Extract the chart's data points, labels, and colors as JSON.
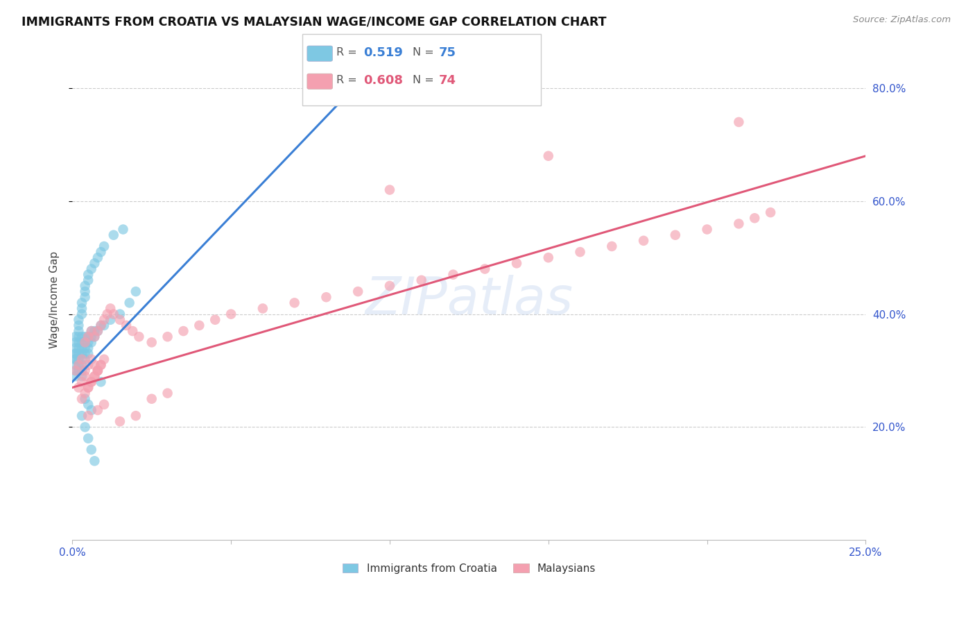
{
  "title": "IMMIGRANTS FROM CROATIA VS MALAYSIAN WAGE/INCOME GAP CORRELATION CHART",
  "source_text": "Source: ZipAtlas.com",
  "ylabel": "Wage/Income Gap",
  "xmin": 0.0,
  "xmax": 0.25,
  "ymin": 0.0,
  "ymax": 0.85,
  "ytick_labels": [
    "20.0%",
    "40.0%",
    "60.0%",
    "80.0%"
  ],
  "ytick_values": [
    0.2,
    0.4,
    0.6,
    0.8
  ],
  "croatia_color": "#7ec8e3",
  "malaysian_color": "#f4a0b0",
  "croatia_line_color": "#3a7fd5",
  "malaysian_line_color": "#e05878",
  "watermark_text": "ZIPatlas",
  "croatia_scatter_x": [
    0.001,
    0.001,
    0.001,
    0.001,
    0.001,
    0.001,
    0.001,
    0.001,
    0.001,
    0.001,
    0.002,
    0.002,
    0.002,
    0.002,
    0.002,
    0.002,
    0.002,
    0.002,
    0.002,
    0.002,
    0.003,
    0.003,
    0.003,
    0.003,
    0.003,
    0.003,
    0.003,
    0.003,
    0.003,
    0.003,
    0.004,
    0.004,
    0.004,
    0.004,
    0.004,
    0.004,
    0.004,
    0.004,
    0.005,
    0.005,
    0.005,
    0.005,
    0.005,
    0.005,
    0.006,
    0.006,
    0.006,
    0.006,
    0.007,
    0.007,
    0.007,
    0.008,
    0.008,
    0.009,
    0.009,
    0.01,
    0.01,
    0.012,
    0.013,
    0.015,
    0.016,
    0.018,
    0.02,
    0.009,
    0.003,
    0.004,
    0.005,
    0.006,
    0.007,
    0.004,
    0.005,
    0.006,
    0.092
  ],
  "croatia_scatter_y": [
    0.32,
    0.33,
    0.34,
    0.33,
    0.32,
    0.31,
    0.3,
    0.29,
    0.35,
    0.36,
    0.33,
    0.34,
    0.35,
    0.32,
    0.31,
    0.3,
    0.36,
    0.37,
    0.38,
    0.39,
    0.33,
    0.34,
    0.35,
    0.36,
    0.31,
    0.3,
    0.29,
    0.4,
    0.41,
    0.42,
    0.34,
    0.35,
    0.36,
    0.33,
    0.32,
    0.43,
    0.44,
    0.45,
    0.34,
    0.35,
    0.36,
    0.33,
    0.46,
    0.47,
    0.35,
    0.36,
    0.37,
    0.48,
    0.36,
    0.37,
    0.49,
    0.37,
    0.5,
    0.38,
    0.51,
    0.38,
    0.52,
    0.39,
    0.54,
    0.4,
    0.55,
    0.42,
    0.44,
    0.28,
    0.22,
    0.2,
    0.18,
    0.16,
    0.14,
    0.25,
    0.24,
    0.23,
    0.82
  ],
  "malaysian_scatter_x": [
    0.001,
    0.002,
    0.003,
    0.004,
    0.005,
    0.006,
    0.007,
    0.008,
    0.002,
    0.003,
    0.004,
    0.005,
    0.006,
    0.007,
    0.008,
    0.009,
    0.003,
    0.004,
    0.005,
    0.006,
    0.007,
    0.008,
    0.009,
    0.01,
    0.004,
    0.005,
    0.006,
    0.007,
    0.008,
    0.009,
    0.01,
    0.011,
    0.012,
    0.013,
    0.015,
    0.017,
    0.019,
    0.021,
    0.025,
    0.03,
    0.035,
    0.04,
    0.045,
    0.05,
    0.06,
    0.07,
    0.08,
    0.09,
    0.1,
    0.11,
    0.12,
    0.13,
    0.14,
    0.15,
    0.16,
    0.17,
    0.18,
    0.19,
    0.2,
    0.21,
    0.215,
    0.22,
    0.1,
    0.15,
    0.21,
    0.005,
    0.008,
    0.01,
    0.015,
    0.02,
    0.025,
    0.03
  ],
  "malaysian_scatter_y": [
    0.3,
    0.31,
    0.32,
    0.3,
    0.31,
    0.32,
    0.31,
    0.3,
    0.27,
    0.28,
    0.29,
    0.27,
    0.28,
    0.29,
    0.3,
    0.31,
    0.25,
    0.26,
    0.27,
    0.28,
    0.29,
    0.3,
    0.31,
    0.32,
    0.35,
    0.36,
    0.37,
    0.36,
    0.37,
    0.38,
    0.39,
    0.4,
    0.41,
    0.4,
    0.39,
    0.38,
    0.37,
    0.36,
    0.35,
    0.36,
    0.37,
    0.38,
    0.39,
    0.4,
    0.41,
    0.42,
    0.43,
    0.44,
    0.45,
    0.46,
    0.47,
    0.48,
    0.49,
    0.5,
    0.51,
    0.52,
    0.53,
    0.54,
    0.55,
    0.56,
    0.57,
    0.58,
    0.62,
    0.68,
    0.74,
    0.22,
    0.23,
    0.24,
    0.21,
    0.22,
    0.25,
    0.26
  ]
}
